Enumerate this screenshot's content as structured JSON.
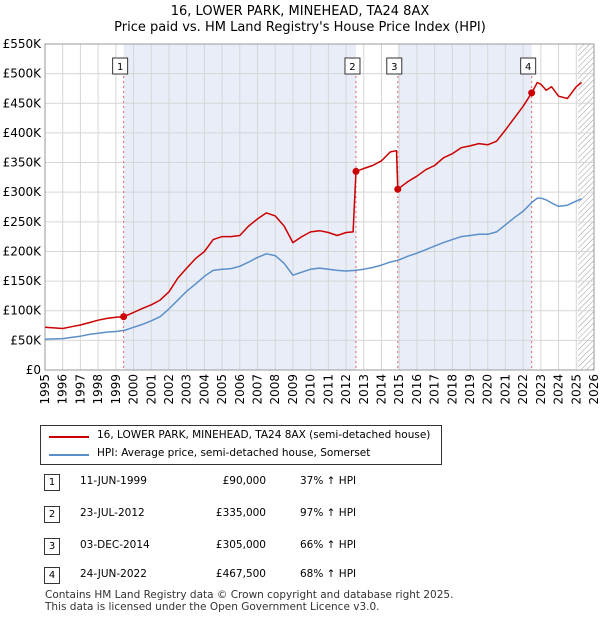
{
  "title_line1": "16, LOWER PARK, MINEHEAD, TA24 8AX",
  "title_line2": "Price paid vs. HM Land Registry's House Price Index (HPI)",
  "colors": {
    "property": "#cc0000",
    "hpi": "#5b8fc9",
    "shade": "#e8edf8",
    "grid": "#d6d6d6",
    "hatch": "#9a9a9a"
  },
  "chart_data": {
    "type": "line",
    "xlim": [
      1995,
      2026
    ],
    "ylim": [
      0,
      550000
    ],
    "yticks": [
      0,
      50000,
      100000,
      150000,
      200000,
      250000,
      300000,
      350000,
      400000,
      450000,
      500000,
      550000
    ],
    "ytick_labels": [
      "£0",
      "£50K",
      "£100K",
      "£150K",
      "£200K",
      "£250K",
      "£300K",
      "£350K",
      "£400K",
      "£450K",
      "£500K",
      "£550K"
    ],
    "xtick_labels": [
      "1995",
      "1996",
      "1997",
      "1998",
      "1999",
      "2000",
      "2001",
      "2002",
      "2003",
      "2004",
      "2005",
      "2006",
      "2007",
      "2008",
      "2009",
      "2010",
      "2011",
      "2012",
      "2013",
      "2014",
      "2015",
      "2016",
      "2017",
      "2018",
      "2019",
      "2020",
      "2021",
      "2022",
      "2023",
      "2024",
      "2025",
      "2026"
    ],
    "shaded_periods": [
      [
        1999.44,
        2012.56
      ],
      [
        2014.92,
        2022.48
      ]
    ],
    "future_start": 2025.1,
    "series": [
      {
        "name": "16, LOWER PARK, MINEHEAD, TA24 8AX (semi-detached house)",
        "points": [
          [
            1995.0,
            72000
          ],
          [
            1995.5,
            71000
          ],
          [
            1996.0,
            70000
          ],
          [
            1996.5,
            73000
          ],
          [
            1997.0,
            76000
          ],
          [
            1997.5,
            80000
          ],
          [
            1998.0,
            84000
          ],
          [
            1998.5,
            87000
          ],
          [
            1999.0,
            89000
          ],
          [
            1999.44,
            90000
          ],
          [
            2000.0,
            97000
          ],
          [
            2000.5,
            104000
          ],
          [
            2001.0,
            110000
          ],
          [
            2001.5,
            118000
          ],
          [
            2002.0,
            132000
          ],
          [
            2002.5,
            155000
          ],
          [
            2003.0,
            172000
          ],
          [
            2003.5,
            188000
          ],
          [
            2004.0,
            200000
          ],
          [
            2004.5,
            220000
          ],
          [
            2005.0,
            225000
          ],
          [
            2005.5,
            225000
          ],
          [
            2006.0,
            227000
          ],
          [
            2006.5,
            243000
          ],
          [
            2007.0,
            255000
          ],
          [
            2007.5,
            265000
          ],
          [
            2008.0,
            260000
          ],
          [
            2008.5,
            243000
          ],
          [
            2009.0,
            215000
          ],
          [
            2009.5,
            225000
          ],
          [
            2010.0,
            233000
          ],
          [
            2010.5,
            235000
          ],
          [
            2011.0,
            232000
          ],
          [
            2011.5,
            227000
          ],
          [
            2012.0,
            232000
          ],
          [
            2012.4,
            233000
          ],
          [
            2012.56,
            335000
          ],
          [
            2013.0,
            340000
          ],
          [
            2013.5,
            345000
          ],
          [
            2014.0,
            353000
          ],
          [
            2014.5,
            368000
          ],
          [
            2014.85,
            370000
          ],
          [
            2014.92,
            305000
          ],
          [
            2015.5,
            318000
          ],
          [
            2016.0,
            327000
          ],
          [
            2016.5,
            338000
          ],
          [
            2017.0,
            345000
          ],
          [
            2017.5,
            358000
          ],
          [
            2018.0,
            365000
          ],
          [
            2018.5,
            375000
          ],
          [
            2019.0,
            378000
          ],
          [
            2019.5,
            382000
          ],
          [
            2020.0,
            380000
          ],
          [
            2020.5,
            386000
          ],
          [
            2021.0,
            405000
          ],
          [
            2021.5,
            425000
          ],
          [
            2022.0,
            445000
          ],
          [
            2022.48,
            467500
          ],
          [
            2022.8,
            485000
          ],
          [
            2023.0,
            482000
          ],
          [
            2023.3,
            472000
          ],
          [
            2023.6,
            478000
          ],
          [
            2024.0,
            462000
          ],
          [
            2024.5,
            458000
          ],
          [
            2025.0,
            478000
          ],
          [
            2025.3,
            485000
          ]
        ]
      },
      {
        "name": "HPI: Average price, semi-detached house, Somerset",
        "points": [
          [
            1995.0,
            52000
          ],
          [
            1995.5,
            52500
          ],
          [
            1996.0,
            53000
          ],
          [
            1996.5,
            55000
          ],
          [
            1997.0,
            57000
          ],
          [
            1997.5,
            60000
          ],
          [
            1998.0,
            62000
          ],
          [
            1998.5,
            64000
          ],
          [
            1999.0,
            65000
          ],
          [
            1999.5,
            67000
          ],
          [
            2000.0,
            72000
          ],
          [
            2000.5,
            77000
          ],
          [
            2001.0,
            83000
          ],
          [
            2001.5,
            90000
          ],
          [
            2002.0,
            103000
          ],
          [
            2002.5,
            118000
          ],
          [
            2003.0,
            133000
          ],
          [
            2003.5,
            145000
          ],
          [
            2004.0,
            158000
          ],
          [
            2004.5,
            168000
          ],
          [
            2005.0,
            170000
          ],
          [
            2005.5,
            171000
          ],
          [
            2006.0,
            175000
          ],
          [
            2006.5,
            182000
          ],
          [
            2007.0,
            190000
          ],
          [
            2007.5,
            196000
          ],
          [
            2008.0,
            193000
          ],
          [
            2008.5,
            180000
          ],
          [
            2009.0,
            160000
          ],
          [
            2009.5,
            165000
          ],
          [
            2010.0,
            170000
          ],
          [
            2010.5,
            172000
          ],
          [
            2011.0,
            170000
          ],
          [
            2011.5,
            168000
          ],
          [
            2012.0,
            167000
          ],
          [
            2012.5,
            168000
          ],
          [
            2013.0,
            170000
          ],
          [
            2013.5,
            173000
          ],
          [
            2014.0,
            177000
          ],
          [
            2014.5,
            182000
          ],
          [
            2015.0,
            186000
          ],
          [
            2015.5,
            192000
          ],
          [
            2016.0,
            197000
          ],
          [
            2016.5,
            203000
          ],
          [
            2017.0,
            209000
          ],
          [
            2017.5,
            215000
          ],
          [
            2018.0,
            220000
          ],
          [
            2018.5,
            225000
          ],
          [
            2019.0,
            227000
          ],
          [
            2019.5,
            229000
          ],
          [
            2020.0,
            229000
          ],
          [
            2020.5,
            233000
          ],
          [
            2021.0,
            245000
          ],
          [
            2021.5,
            257000
          ],
          [
            2022.0,
            268000
          ],
          [
            2022.5,
            283000
          ],
          [
            2022.8,
            290000
          ],
          [
            2023.0,
            290000
          ],
          [
            2023.3,
            287000
          ],
          [
            2023.6,
            282000
          ],
          [
            2024.0,
            276000
          ],
          [
            2024.5,
            278000
          ],
          [
            2025.0,
            285000
          ],
          [
            2025.3,
            289000
          ]
        ]
      }
    ],
    "sales": [
      {
        "label": "1",
        "x": 1999.44,
        "y": 90000
      },
      {
        "label": "2",
        "x": 2012.56,
        "y": 335000
      },
      {
        "label": "3",
        "x": 2014.92,
        "y": 305000
      },
      {
        "label": "4",
        "x": 2022.48,
        "y": 467500
      }
    ]
  },
  "legend": {
    "property_label": "16, LOWER PARK, MINEHEAD, TA24 8AX (semi-detached house)",
    "hpi_label": "HPI: Average price, semi-detached house, Somerset"
  },
  "transactions": [
    {
      "num": "1",
      "date": "11-JUN-1999",
      "price": "£90,000",
      "hpi": "37% ↑ HPI"
    },
    {
      "num": "2",
      "date": "23-JUL-2012",
      "price": "£335,000",
      "hpi": "97% ↑ HPI"
    },
    {
      "num": "3",
      "date": "03-DEC-2014",
      "price": "£305,000",
      "hpi": "66% ↑ HPI"
    },
    {
      "num": "4",
      "date": "24-JUN-2022",
      "price": "£467,500",
      "hpi": "68% ↑ HPI"
    }
  ],
  "footer_line1": "Contains HM Land Registry data © Crown copyright and database right 2025.",
  "footer_line2": "This data is licensed under the Open Government Licence v3.0."
}
